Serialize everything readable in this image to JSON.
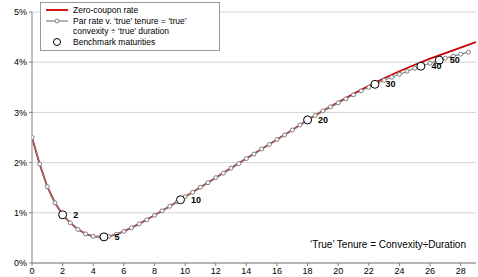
{
  "chart_data": {
    "type": "line",
    "legend": "upper left",
    "grid": true,
    "annotation": "‘True’ Tenure = Convexity÷Duration",
    "xlim": [
      0,
      29
    ],
    "xticks": [
      0,
      2,
      4,
      6,
      8,
      10,
      12,
      14,
      16,
      18,
      20,
      22,
      24,
      26,
      28
    ],
    "ylim": [
      0,
      5
    ],
    "yticks": [
      {
        "value": 0,
        "label": "0%"
      },
      {
        "value": 1,
        "label": "1%"
      },
      {
        "value": 2,
        "label": "2%"
      },
      {
        "value": 3,
        "label": "3%"
      },
      {
        "value": 4,
        "label": "4%"
      },
      {
        "value": 5,
        "label": "5%"
      }
    ],
    "series": [
      {
        "name": "Zero-coupon rate",
        "type": "line",
        "color": "#cc0000",
        "marker": "none",
        "line_style": "solid",
        "x": [
          0,
          0.5,
          1,
          1.5,
          2,
          2.5,
          3,
          3.5,
          4,
          4.5,
          5,
          5.5,
          6,
          7,
          8,
          9,
          10,
          11,
          12,
          13,
          14,
          15,
          16,
          17,
          18,
          19,
          20,
          21,
          22,
          23,
          24,
          25,
          26,
          27,
          28,
          29
        ],
        "values": [
          2.5,
          1.97,
          1.52,
          1.2,
          0.96,
          0.8,
          0.67,
          0.58,
          0.53,
          0.52,
          0.53,
          0.57,
          0.63,
          0.78,
          0.95,
          1.13,
          1.32,
          1.51,
          1.7,
          1.89,
          2.08,
          2.27,
          2.46,
          2.65,
          2.85,
          3.03,
          3.2,
          3.37,
          3.53,
          3.68,
          3.82,
          3.95,
          4.07,
          4.18,
          4.29,
          4.4
        ]
      },
      {
        "name": "Par rate v. ‘true’ tenure = ‘true’ convexity ÷ ‘true’ duration",
        "type": "line",
        "color": "#808080",
        "marker": "circle",
        "line_style": "solid",
        "x": [
          0,
          0.5,
          1,
          1.5,
          2,
          2.5,
          3,
          3.5,
          4,
          4.5,
          5,
          5.5,
          6,
          6.5,
          7,
          7.5,
          8,
          8.5,
          9,
          9.5,
          10,
          10.5,
          11,
          11.5,
          12,
          12.5,
          13,
          13.5,
          14,
          14.5,
          15,
          15.5,
          16,
          16.5,
          17,
          17.5,
          18,
          18.5,
          19,
          19.5,
          20,
          20.5,
          21,
          21.5,
          22,
          22.5,
          23,
          23.5,
          24,
          24.5,
          25,
          25.5,
          26,
          26.5,
          27,
          27.5,
          28,
          28.5
        ],
        "values": [
          2.5,
          1.97,
          1.52,
          1.2,
          0.96,
          0.8,
          0.67,
          0.58,
          0.53,
          0.52,
          0.53,
          0.57,
          0.63,
          0.7,
          0.78,
          0.86,
          0.95,
          1.04,
          1.13,
          1.22,
          1.32,
          1.41,
          1.51,
          1.6,
          1.7,
          1.79,
          1.89,
          1.98,
          2.08,
          2.17,
          2.27,
          2.36,
          2.46,
          2.55,
          2.65,
          2.75,
          2.85,
          2.94,
          3.03,
          3.11,
          3.19,
          3.27,
          3.35,
          3.43,
          3.5,
          3.57,
          3.64,
          3.7,
          3.76,
          3.82,
          3.88,
          3.93,
          3.98,
          4.03,
          4.08,
          4.12,
          4.16,
          4.2
        ]
      },
      {
        "name": "Benchmark maturities",
        "type": "scatter",
        "color": "#000000",
        "marker": "circle",
        "line_style": "none",
        "x": [
          2,
          4.7,
          9.7,
          18,
          22.4,
          25.4,
          26.6
        ],
        "values": [
          0.96,
          0.52,
          1.26,
          2.85,
          3.56,
          3.92,
          4.04
        ],
        "labels": [
          "2",
          "5",
          "10",
          "20",
          "30",
          "40",
          "50"
        ]
      }
    ]
  }
}
